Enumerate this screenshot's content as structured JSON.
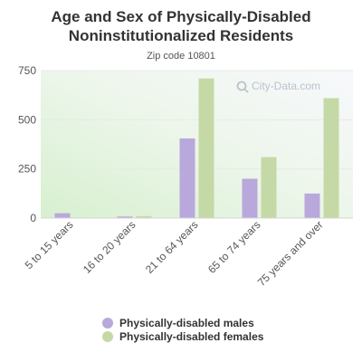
{
  "chart_data": {
    "type": "bar",
    "title_line1": "Age and Sex of Physically-Disabled",
    "title_line2": "Noninstitutionalized Residents",
    "subtitle": "Zip code 10801",
    "categories": [
      "5 to 15 years",
      "16 to 20 years",
      "21 to 64 years",
      "65 to 74 years",
      "75 years and over"
    ],
    "series": [
      {
        "name": "Physically-disabled males",
        "color": "#b9a8dc",
        "values": [
          25,
          8,
          405,
          200,
          125
        ]
      },
      {
        "name": "Physically-disabled females",
        "color": "#c5d9a6",
        "values": [
          0,
          10,
          710,
          310,
          610
        ]
      }
    ],
    "ylim": [
      0,
      750
    ],
    "yticks": [
      0,
      250,
      500,
      750
    ],
    "grid": true,
    "legend_placement": "bottom",
    "watermark": "City-Data.com"
  }
}
